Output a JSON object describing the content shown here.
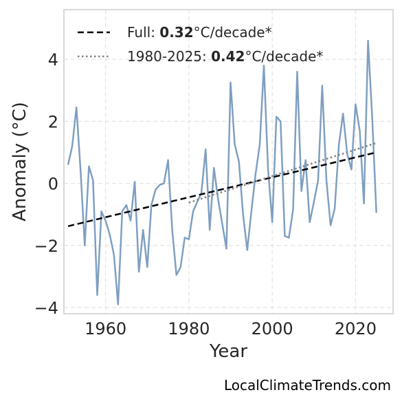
{
  "chart_data": {
    "type": "line",
    "xlabel": "Year",
    "ylabel": "Anomaly (°C)",
    "xlim": [
      1950,
      2029
    ],
    "ylim": [
      -4.2,
      5.6
    ],
    "xticks": [
      1960,
      1980,
      2000,
      2020
    ],
    "yticks": [
      -4,
      -2,
      0,
      2,
      4
    ],
    "ytick_labels": [
      "−4",
      "−2",
      "0",
      "2",
      "4"
    ],
    "grid": true,
    "legend_position": "top-left",
    "series": [
      {
        "style": "solid",
        "color": "#7f9fc1",
        "x": [
          1951,
          1952,
          1953,
          1954,
          1955,
          1956,
          1957,
          1958,
          1959,
          1960,
          1961,
          1962,
          1963,
          1964,
          1965,
          1966,
          1967,
          1968,
          1969,
          1970,
          1971,
          1972,
          1973,
          1974,
          1975,
          1976,
          1977,
          1978,
          1979,
          1980,
          1981,
          1982,
          1983,
          1984,
          1985,
          1986,
          1987,
          1988,
          1989,
          1990,
          1991,
          1992,
          1993,
          1994,
          1995,
          1996,
          1997,
          1998,
          1999,
          2000,
          2001,
          2002,
          2003,
          2004,
          2005,
          2006,
          2007,
          2008,
          2009,
          2010,
          2011,
          2012,
          2013,
          2014,
          2015,
          2016,
          2017,
          2018,
          2019,
          2020,
          2021,
          2022,
          2023,
          2024,
          2025
        ],
        "values": [
          0.6,
          1.2,
          2.45,
          0.4,
          -2.0,
          0.55,
          0.1,
          -3.6,
          -0.9,
          -1.2,
          -1.65,
          -2.3,
          -3.9,
          -0.9,
          -0.7,
          -1.2,
          0.05,
          -2.85,
          -1.5,
          -2.7,
          -0.7,
          -0.2,
          -0.05,
          0.0,
          0.75,
          -1.5,
          -2.95,
          -2.7,
          -1.75,
          -1.8,
          -0.9,
          -0.6,
          -0.3,
          1.1,
          -1.5,
          0.5,
          -0.5,
          -1.3,
          -2.1,
          3.25,
          1.25,
          0.7,
          -1.0,
          -2.15,
          -0.9,
          0.3,
          1.25,
          3.8,
          0.45,
          -1.25,
          2.15,
          2.0,
          -1.7,
          -1.75,
          -0.85,
          3.6,
          -0.25,
          0.75,
          -1.25,
          -0.6,
          0.1,
          3.15,
          0.1,
          -1.35,
          -0.8,
          1.25,
          2.25,
          0.95,
          0.45,
          2.55,
          1.7,
          -0.65,
          4.6,
          2.1,
          -0.95
        ]
      },
      {
        "name_prefix": "Full: ",
        "name_value": "0.32",
        "name_suffix": "°C/decade*",
        "style": "dashed",
        "color": "#000000",
        "x": [
          1951,
          2025
        ],
        "values": [
          -1.38,
          1.0
        ]
      },
      {
        "name_prefix": "1980-2025: ",
        "name_value": "0.42",
        "name_suffix": "°C/decade*",
        "style": "dotted",
        "color": "#808080",
        "x": [
          1980,
          2025
        ],
        "values": [
          -0.62,
          1.3
        ]
      }
    ]
  },
  "credit": "LocalClimateTrends.com"
}
